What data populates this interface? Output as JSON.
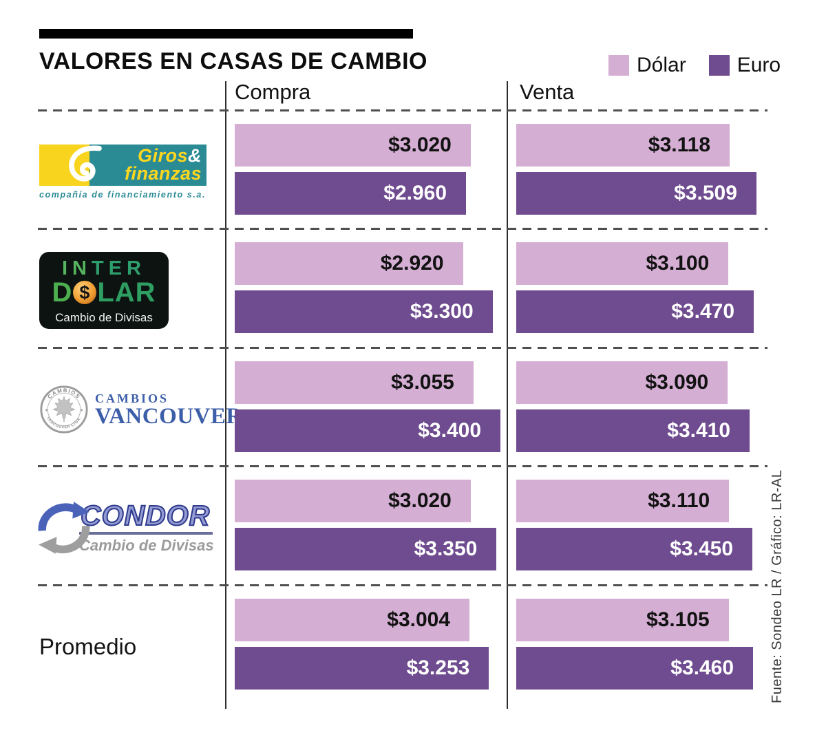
{
  "title": "VALORES EN CASAS DE CAMBIO",
  "legend": {
    "dolar": "Dólar",
    "euro": "Euro"
  },
  "colors": {
    "dolar": "#d4aed3",
    "euro": "#6f4b8f",
    "title": "#0d0d0d"
  },
  "source": "Fuente: Sondeo LR / Gráfico: LR-AL",
  "logos": {
    "giros": {
      "name_main": "Giros",
      "amp": "&",
      "name_sub": "finanzas",
      "tagline": "compañía de financiamiento s.a."
    },
    "interdolar": {
      "word1_a": "IN",
      "word1_b": "TER",
      "d": "D",
      "coin": "$",
      "lar": "LAR",
      "tagline": "Cambio de Divisas"
    },
    "vancouver": {
      "small": "CAMBIOS",
      "big": "VANCOUVER",
      "seal_top": "CAMBIOS",
      "seal_bottom": "VANCOUVER LTDA."
    },
    "condor": {
      "name": "CONDOR",
      "tagline": "Cambio de Divisas"
    }
  },
  "chart_data": {
    "type": "bar",
    "orientation": "horizontal",
    "title": "VALORES EN CASAS DE CAMBIO",
    "unit": "pesos colombianos",
    "legend": [
      "Dólar",
      "Euro"
    ],
    "legend_position": "top-right",
    "grid": false,
    "columns": [
      {
        "key": "compra",
        "label": "Compra",
        "axis_max": 3435
      },
      {
        "key": "venta",
        "label": "Venta",
        "axis_max": 3520
      }
    ],
    "rows": [
      {
        "entity": "Giros & Finanzas",
        "compra": {
          "dolar": {
            "value": 3020,
            "label": "$3.020"
          },
          "euro": {
            "value": 2960,
            "label": "$2.960"
          }
        },
        "venta": {
          "dolar": {
            "value": 3118,
            "label": "$3.118"
          },
          "euro": {
            "value": 3509,
            "label": "$3.509"
          }
        }
      },
      {
        "entity": "Inter Dólar",
        "compra": {
          "dolar": {
            "value": 2920,
            "label": "$2.920"
          },
          "euro": {
            "value": 3300,
            "label": "$3.300"
          }
        },
        "venta": {
          "dolar": {
            "value": 3100,
            "label": "$3.100"
          },
          "euro": {
            "value": 3470,
            "label": "$3.470"
          }
        }
      },
      {
        "entity": "Cambios Vancouver",
        "compra": {
          "dolar": {
            "value": 3055,
            "label": "$3.055"
          },
          "euro": {
            "value": 3400,
            "label": "$3.400"
          }
        },
        "venta": {
          "dolar": {
            "value": 3090,
            "label": "$3.090"
          },
          "euro": {
            "value": 3410,
            "label": "$3.410"
          }
        }
      },
      {
        "entity": "Cóndor",
        "compra": {
          "dolar": {
            "value": 3020,
            "label": "$3.020"
          },
          "euro": {
            "value": 3350,
            "label": "$3.350"
          }
        },
        "venta": {
          "dolar": {
            "value": 3110,
            "label": "$3.110"
          },
          "euro": {
            "value": 3450,
            "label": "$3.450"
          }
        }
      },
      {
        "entity": "Promedio",
        "compra": {
          "dolar": {
            "value": 3004,
            "label": "$3.004"
          },
          "euro": {
            "value": 3253,
            "label": "$3.253"
          }
        },
        "venta": {
          "dolar": {
            "value": 3105,
            "label": "$3.105"
          },
          "euro": {
            "value": 3460,
            "label": "$3.460"
          }
        }
      }
    ]
  }
}
